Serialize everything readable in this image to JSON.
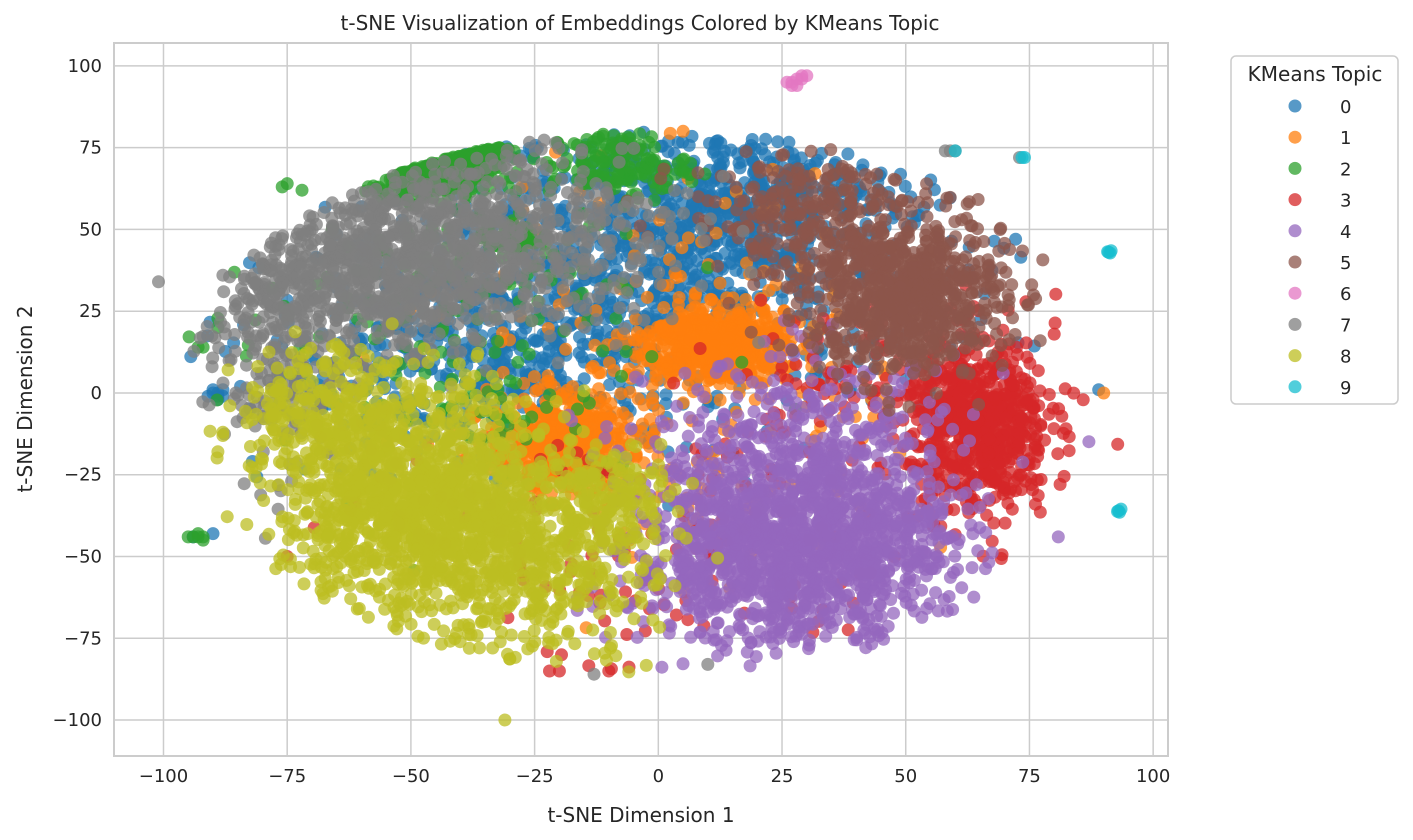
{
  "chart_data": {
    "type": "scatter",
    "title": "t-SNE Visualization of Embeddings Colored by KMeans Topic",
    "xlabel": "t-SNE Dimension 1",
    "ylabel": "t-SNE Dimension 2",
    "xlim": [
      -110,
      103
    ],
    "ylim": [
      -111,
      107
    ],
    "xticks": [
      -100,
      -75,
      -50,
      -25,
      0,
      25,
      50,
      75,
      100
    ],
    "xtick_labels": [
      "−100",
      "−75",
      "−50",
      "−25",
      "0",
      "25",
      "50",
      "75",
      "100"
    ],
    "yticks": [
      -100,
      -75,
      -50,
      -25,
      0,
      25,
      50,
      75,
      100
    ],
    "ytick_labels": [
      "−100",
      "−75",
      "−50",
      "−25",
      "0",
      "25",
      "50",
      "75",
      "100"
    ],
    "grid": true,
    "legend": {
      "title": "KMeans Topic",
      "placement": "outside right, top"
    },
    "series": [
      {
        "name": "0",
        "color": "#1f77b4",
        "clusters": [
          {
            "cx": 0,
            "cy": 40,
            "sx": 28,
            "sy": 22,
            "n": 900
          },
          {
            "cx": -35,
            "cy": 10,
            "sx": 22,
            "sy": 18,
            "n": 500
          },
          {
            "cx": 20,
            "cy": 60,
            "sx": 15,
            "sy": 10,
            "n": 300
          }
        ],
        "points": [
          [
            -89,
            -1
          ],
          [
            -90,
            0
          ],
          [
            -88,
            1
          ],
          [
            -91,
            -1
          ],
          [
            -89,
            -2
          ],
          [
            -90,
            1
          ],
          [
            -88,
            -1
          ],
          [
            -89,
            0
          ],
          [
            89,
            1
          ],
          [
            -94,
            -44
          ],
          [
            -90,
            -43
          ]
        ]
      },
      {
        "name": "1",
        "color": "#ff7f0e",
        "clusters": [
          {
            "cx": 12,
            "cy": 15,
            "sx": 7,
            "sy": 6,
            "n": 550
          },
          {
            "cx": -20,
            "cy": -15,
            "sx": 7,
            "sy": 7,
            "n": 450
          },
          {
            "cx": 5,
            "cy": 5,
            "sx": 22,
            "sy": 30,
            "n": 250
          }
        ],
        "points": [
          [
            90,
            0
          ],
          [
            5,
            80
          ]
        ]
      },
      {
        "name": "2",
        "color": "#2ca02c",
        "clusters": [
          {
            "cx": -47,
            "cy": 67,
            "sx": 6,
            "sy": 4,
            "n": 280
          },
          {
            "cx": -37,
            "cy": 74,
            "sx": 3,
            "sy": 3,
            "n": 140
          },
          {
            "cx": -8,
            "cy": 70,
            "sx": 7,
            "sy": 5,
            "n": 150
          },
          {
            "cx": -45,
            "cy": 20,
            "sx": 22,
            "sy": 25,
            "n": 180
          },
          {
            "cx": -30,
            "cy": 48,
            "sx": 3,
            "sy": 3,
            "n": 60
          }
        ],
        "points": [
          [
            -94,
            -44
          ],
          [
            -93,
            -44
          ],
          [
            -92,
            -45
          ],
          [
            -95,
            -44
          ],
          [
            -92,
            -44
          ],
          [
            -93,
            -43
          ],
          [
            -93,
            14
          ],
          [
            -92,
            14
          ],
          [
            -89,
            20
          ],
          [
            -75,
            64
          ],
          [
            -72,
            62
          ],
          [
            -76,
            63
          ]
        ]
      },
      {
        "name": "3",
        "color": "#d62728",
        "clusters": [
          {
            "cx": 65,
            "cy": -10,
            "sx": 7,
            "sy": 13,
            "n": 650
          },
          {
            "cx": 45,
            "cy": 5,
            "sx": 15,
            "sy": 12,
            "n": 120
          },
          {
            "cx": 0,
            "cy": -50,
            "sx": 30,
            "sy": 20,
            "n": 120
          }
        ],
        "points": [
          [
            -75,
            -50
          ],
          [
            -20,
            -85
          ],
          [
            -22,
            -85
          ],
          [
            -10,
            -85
          ],
          [
            80,
            18
          ]
        ]
      },
      {
        "name": "4",
        "color": "#9467bd",
        "clusters": [
          {
            "cx": 25,
            "cy": -50,
            "sx": 15,
            "sy": 14,
            "n": 1100
          },
          {
            "cx": 30,
            "cy": -20,
            "sx": 16,
            "sy": 15,
            "n": 450
          },
          {
            "cx": 45,
            "cy": -45,
            "sx": 10,
            "sy": 12,
            "n": 200
          }
        ],
        "points": []
      },
      {
        "name": "5",
        "color": "#8c564b",
        "clusters": [
          {
            "cx": 50,
            "cy": 30,
            "sx": 10,
            "sy": 12,
            "n": 750
          },
          {
            "cx": 30,
            "cy": 55,
            "sx": 12,
            "sy": 10,
            "n": 250
          }
        ],
        "points": []
      },
      {
        "name": "6",
        "color": "#e377c2",
        "clusters": [],
        "points": [
          [
            26,
            95
          ],
          [
            27,
            94
          ],
          [
            28,
            96
          ],
          [
            29,
            97
          ],
          [
            30,
            97
          ],
          [
            28,
            94
          ],
          [
            29,
            96
          ],
          [
            27,
            95
          ]
        ]
      },
      {
        "name": "7",
        "color": "#7f7f7f",
        "clusters": [
          {
            "cx": -55,
            "cy": 40,
            "sx": 14,
            "sy": 13,
            "n": 800
          },
          {
            "cx": -25,
            "cy": 50,
            "sx": 16,
            "sy": 16,
            "n": 350
          },
          {
            "cx": -78,
            "cy": 15,
            "sx": 7,
            "sy": 20,
            "n": 250
          }
        ],
        "points": [
          [
            -101,
            34
          ],
          [
            -88,
            36
          ],
          [
            58,
            74
          ],
          [
            59,
            74
          ],
          [
            60,
            74
          ],
          [
            73,
            72
          ],
          [
            -13,
            -86
          ],
          [
            10,
            -83
          ]
        ]
      },
      {
        "name": "8",
        "color": "#bcbd22",
        "clusters": [
          {
            "cx": -48,
            "cy": -35,
            "sx": 14,
            "sy": 17,
            "n": 1300
          },
          {
            "cx": -65,
            "cy": -5,
            "sx": 10,
            "sy": 10,
            "n": 250
          },
          {
            "cx": -25,
            "cy": -55,
            "sx": 12,
            "sy": 14,
            "n": 350
          },
          {
            "cx": -10,
            "cy": -30,
            "sx": 8,
            "sy": 8,
            "n": 150
          }
        ],
        "points": [
          [
            -31,
            -100
          ],
          [
            -88,
            -12
          ],
          [
            -89,
            -18
          ],
          [
            -88,
            -13
          ]
        ]
      },
      {
        "name": "9",
        "color": "#17becf",
        "clusters": [],
        "points": [
          [
            93,
            -36
          ],
          [
            93.5,
            -35.5
          ],
          [
            92.8,
            -36.2
          ],
          [
            93.2,
            -36.5
          ],
          [
            91,
            43
          ],
          [
            91.5,
            43.5
          ],
          [
            90.8,
            43.2
          ],
          [
            91.3,
            42.8
          ],
          [
            73.5,
            72
          ],
          [
            74,
            72
          ],
          [
            60,
            74
          ]
        ]
      }
    ]
  }
}
